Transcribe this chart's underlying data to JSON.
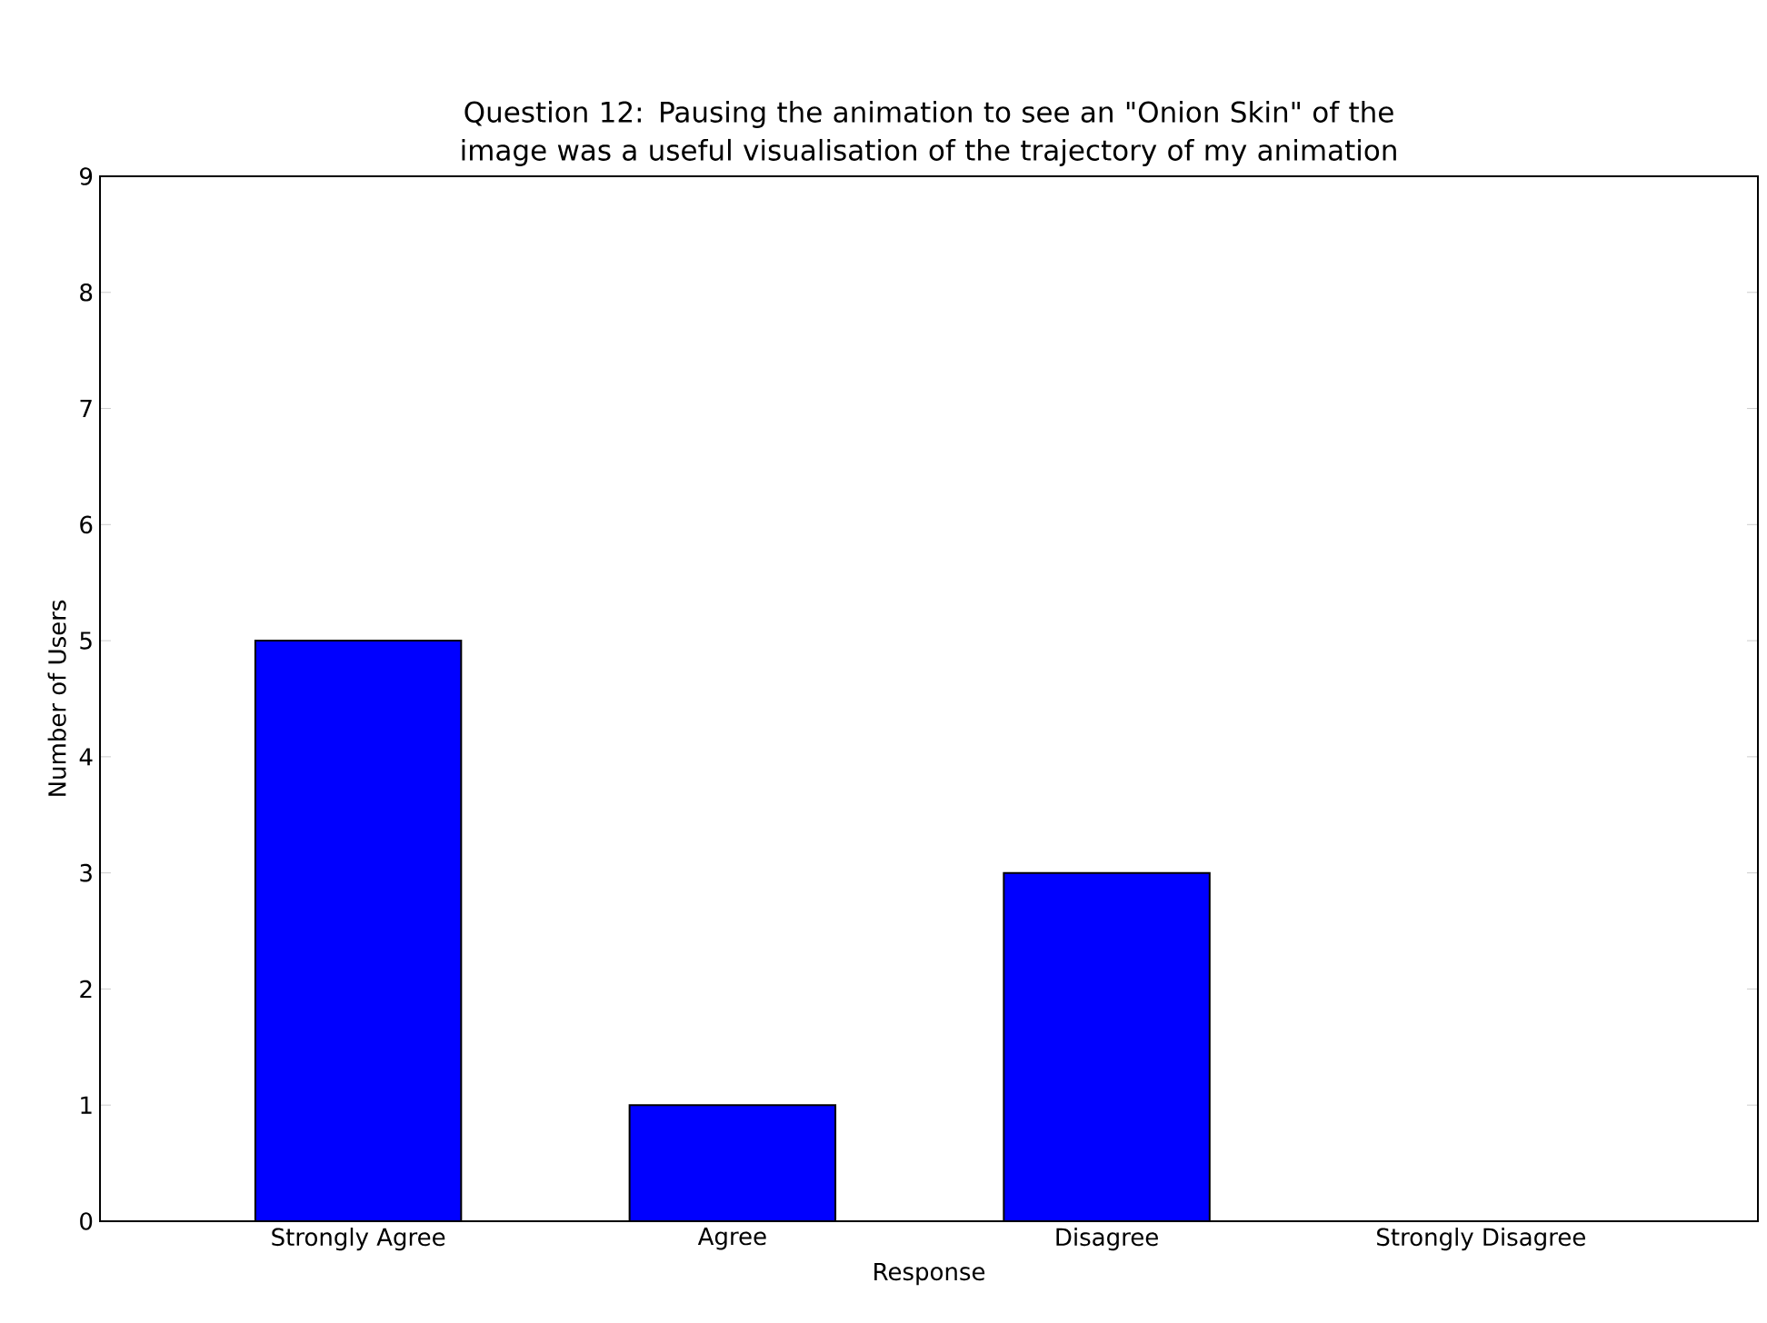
{
  "chart_data": {
    "type": "bar",
    "title": "Question 12: Pausing the animation to see an \"Onion Skin\" of the image was a useful visualisation of the trajectory of my animation",
    "xlabel": "Response",
    "ylabel": "Number of Users",
    "categories": [
      "Strongly Agree",
      "Agree",
      "Disagree",
      "Strongly Disagree"
    ],
    "values": [
      5,
      1,
      3,
      0
    ],
    "color": "#0000ff",
    "ylim": [
      0,
      9
    ],
    "yticks": [
      0,
      1,
      2,
      3,
      4,
      5,
      6,
      7,
      8,
      9
    ]
  }
}
